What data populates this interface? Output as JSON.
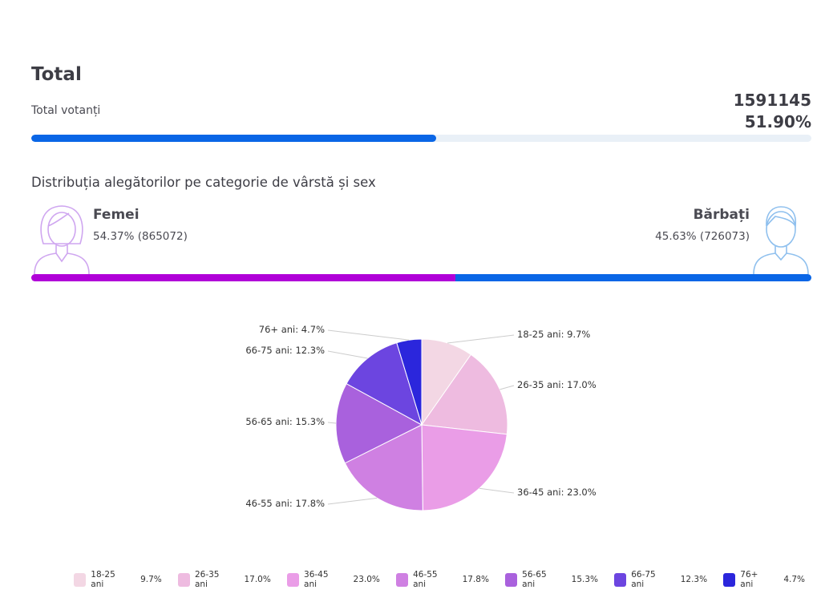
{
  "total": {
    "title": "Total",
    "label": "Total votanți",
    "count": "1591145",
    "percent": "51.90%",
    "progress": 51.9,
    "bar_color": "#0a66e6"
  },
  "distribution": {
    "title": "Distribuția alegătorilor pe categorie de vârstă și sex",
    "female": {
      "label": "Femei",
      "value": "54.37% (865072)",
      "share": 54.37,
      "color": "#b000d8"
    },
    "male": {
      "label": "Bărbați",
      "value": "45.63% (726073)",
      "share": 45.63,
      "color": "#0a66e6"
    }
  },
  "chart_data": {
    "type": "pie",
    "categories": [
      "18-25 ani",
      "26-35 ani",
      "36-45 ani",
      "46-55 ani",
      "56-65 ani",
      "66-75 ani",
      "76+ ani"
    ],
    "values": [
      9.7,
      17.0,
      23.0,
      17.8,
      15.3,
      12.3,
      4.7
    ],
    "data_labels": [
      "18-25 ani: 9.7%",
      "26-35 ani: 17.0%",
      "36-45 ani: 23.0%",
      "46-55 ani: 17.8%",
      "56-65 ani: 15.3%",
      "66-75 ani: 12.3%",
      "76+ ani: 4.7%"
    ],
    "legend_values": [
      "9.7%",
      "17.0%",
      "23.0%",
      "17.8%",
      "15.3%",
      "12.3%",
      "4.7%"
    ],
    "colors": [
      "#f3d7e4",
      "#eebbe0",
      "#ea9de7",
      "#cf80e2",
      "#a961dd",
      "#6c45e0",
      "#2b26dc"
    ],
    "legend_position": "bottom"
  }
}
